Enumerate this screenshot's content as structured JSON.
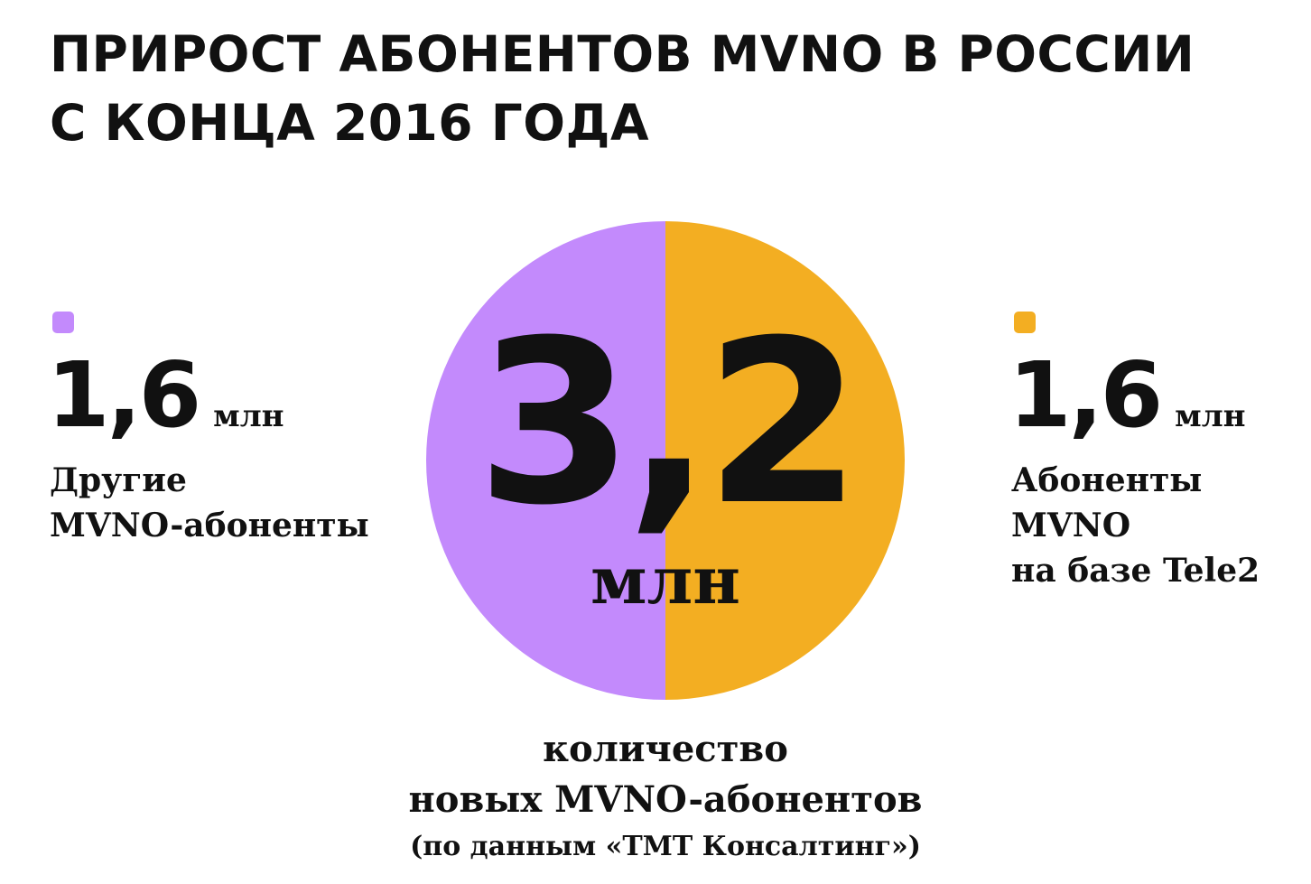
{
  "chart_data": {
    "type": "pie",
    "title": "ПРИРОСТ АБОНЕНТОВ MVNO В РОССИИ\nС КОНЦА 2016 ГОДА",
    "categories": [
      "Другие\nMVNO-абоненты",
      "Абоненты\nMVNO\nна базе Tele2"
    ],
    "values": [
      1.6,
      1.6
    ],
    "value_labels": [
      "1,6",
      "1,6"
    ],
    "colors": [
      "#c38afc",
      "#f3ae22"
    ],
    "unit": "млн",
    "total": {
      "value": 3.2,
      "label": "3,2"
    },
    "caption": "количество\nновых MVNO-абонентов",
    "source": "(по данным «TMT Консалтинг»)"
  }
}
